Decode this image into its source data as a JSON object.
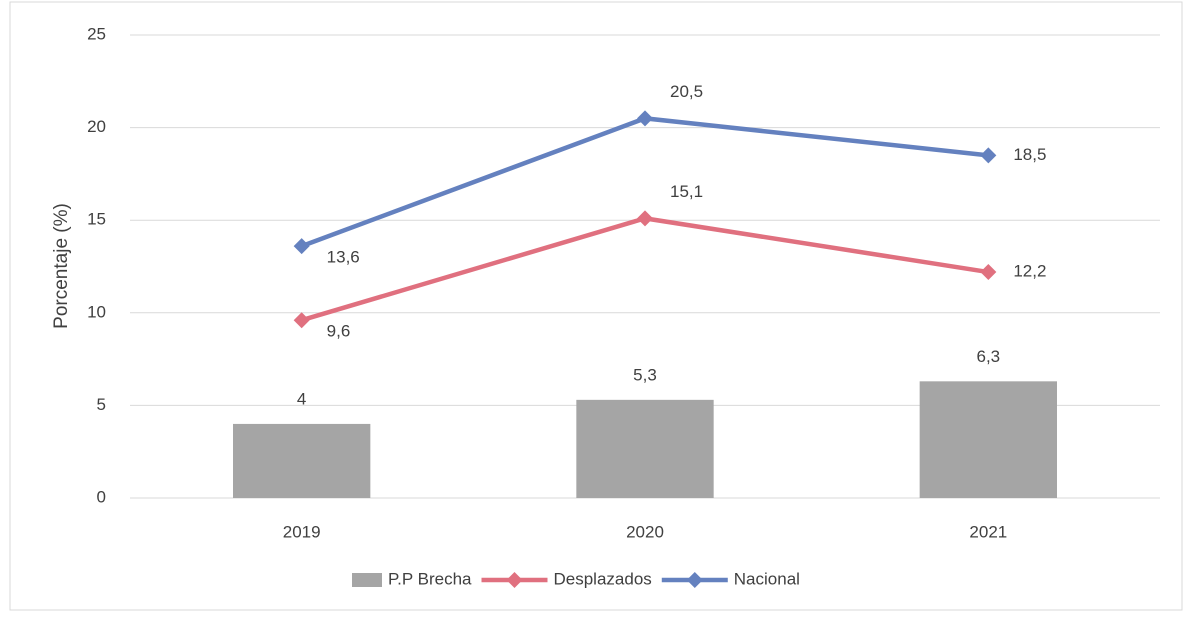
{
  "chart_data": {
    "type": "bar",
    "ylabel": "Porcentaje (%)",
    "categories": [
      "2019",
      "2020",
      "2021"
    ],
    "series": [
      {
        "name": "P.P Brecha",
        "type": "bar",
        "color": "#a5a5a5",
        "values": [
          4,
          5.3,
          6.3
        ],
        "value_labels": [
          "4",
          "5,3",
          "6,3"
        ]
      },
      {
        "name": "Desplazados",
        "type": "line",
        "color": "#e0707f",
        "values": [
          9.6,
          15.1,
          12.2
        ],
        "value_labels": [
          "9,6",
          "15,1",
          "12,2"
        ]
      },
      {
        "name": "Nacional",
        "type": "line",
        "color": "#6481bf",
        "values": [
          13.6,
          20.5,
          18.5
        ],
        "value_labels": [
          "13,6",
          "20,5",
          "18,5"
        ]
      }
    ],
    "ylim": [
      0,
      25
    ],
    "yticks": [
      0,
      5,
      10,
      15,
      20,
      25
    ],
    "grid": true,
    "legend": "bottom"
  }
}
